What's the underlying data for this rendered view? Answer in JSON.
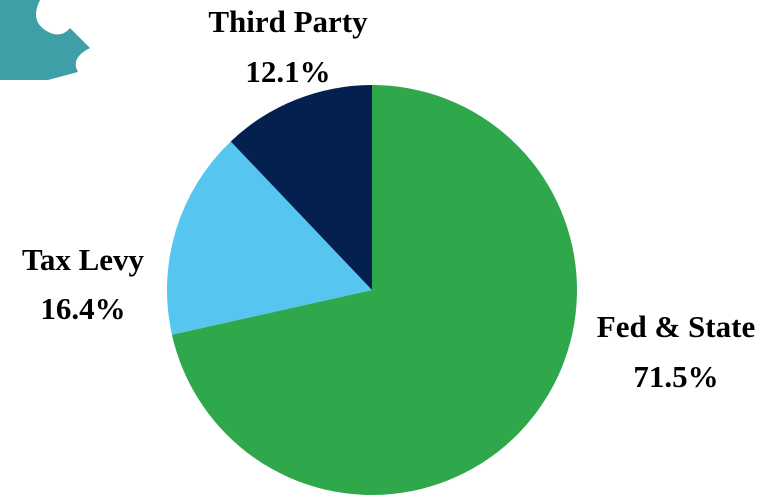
{
  "chart_data": {
    "type": "pie",
    "categories": [
      "Fed & State",
      "Tax Levy",
      "Third Party"
    ],
    "values": [
      71.5,
      16.4,
      12.1
    ],
    "value_labels": [
      "71.5%",
      "16.4%",
      "12.1%"
    ],
    "colors": [
      "#2ea84a",
      "#56c5f0",
      "#03204f"
    ]
  }
}
